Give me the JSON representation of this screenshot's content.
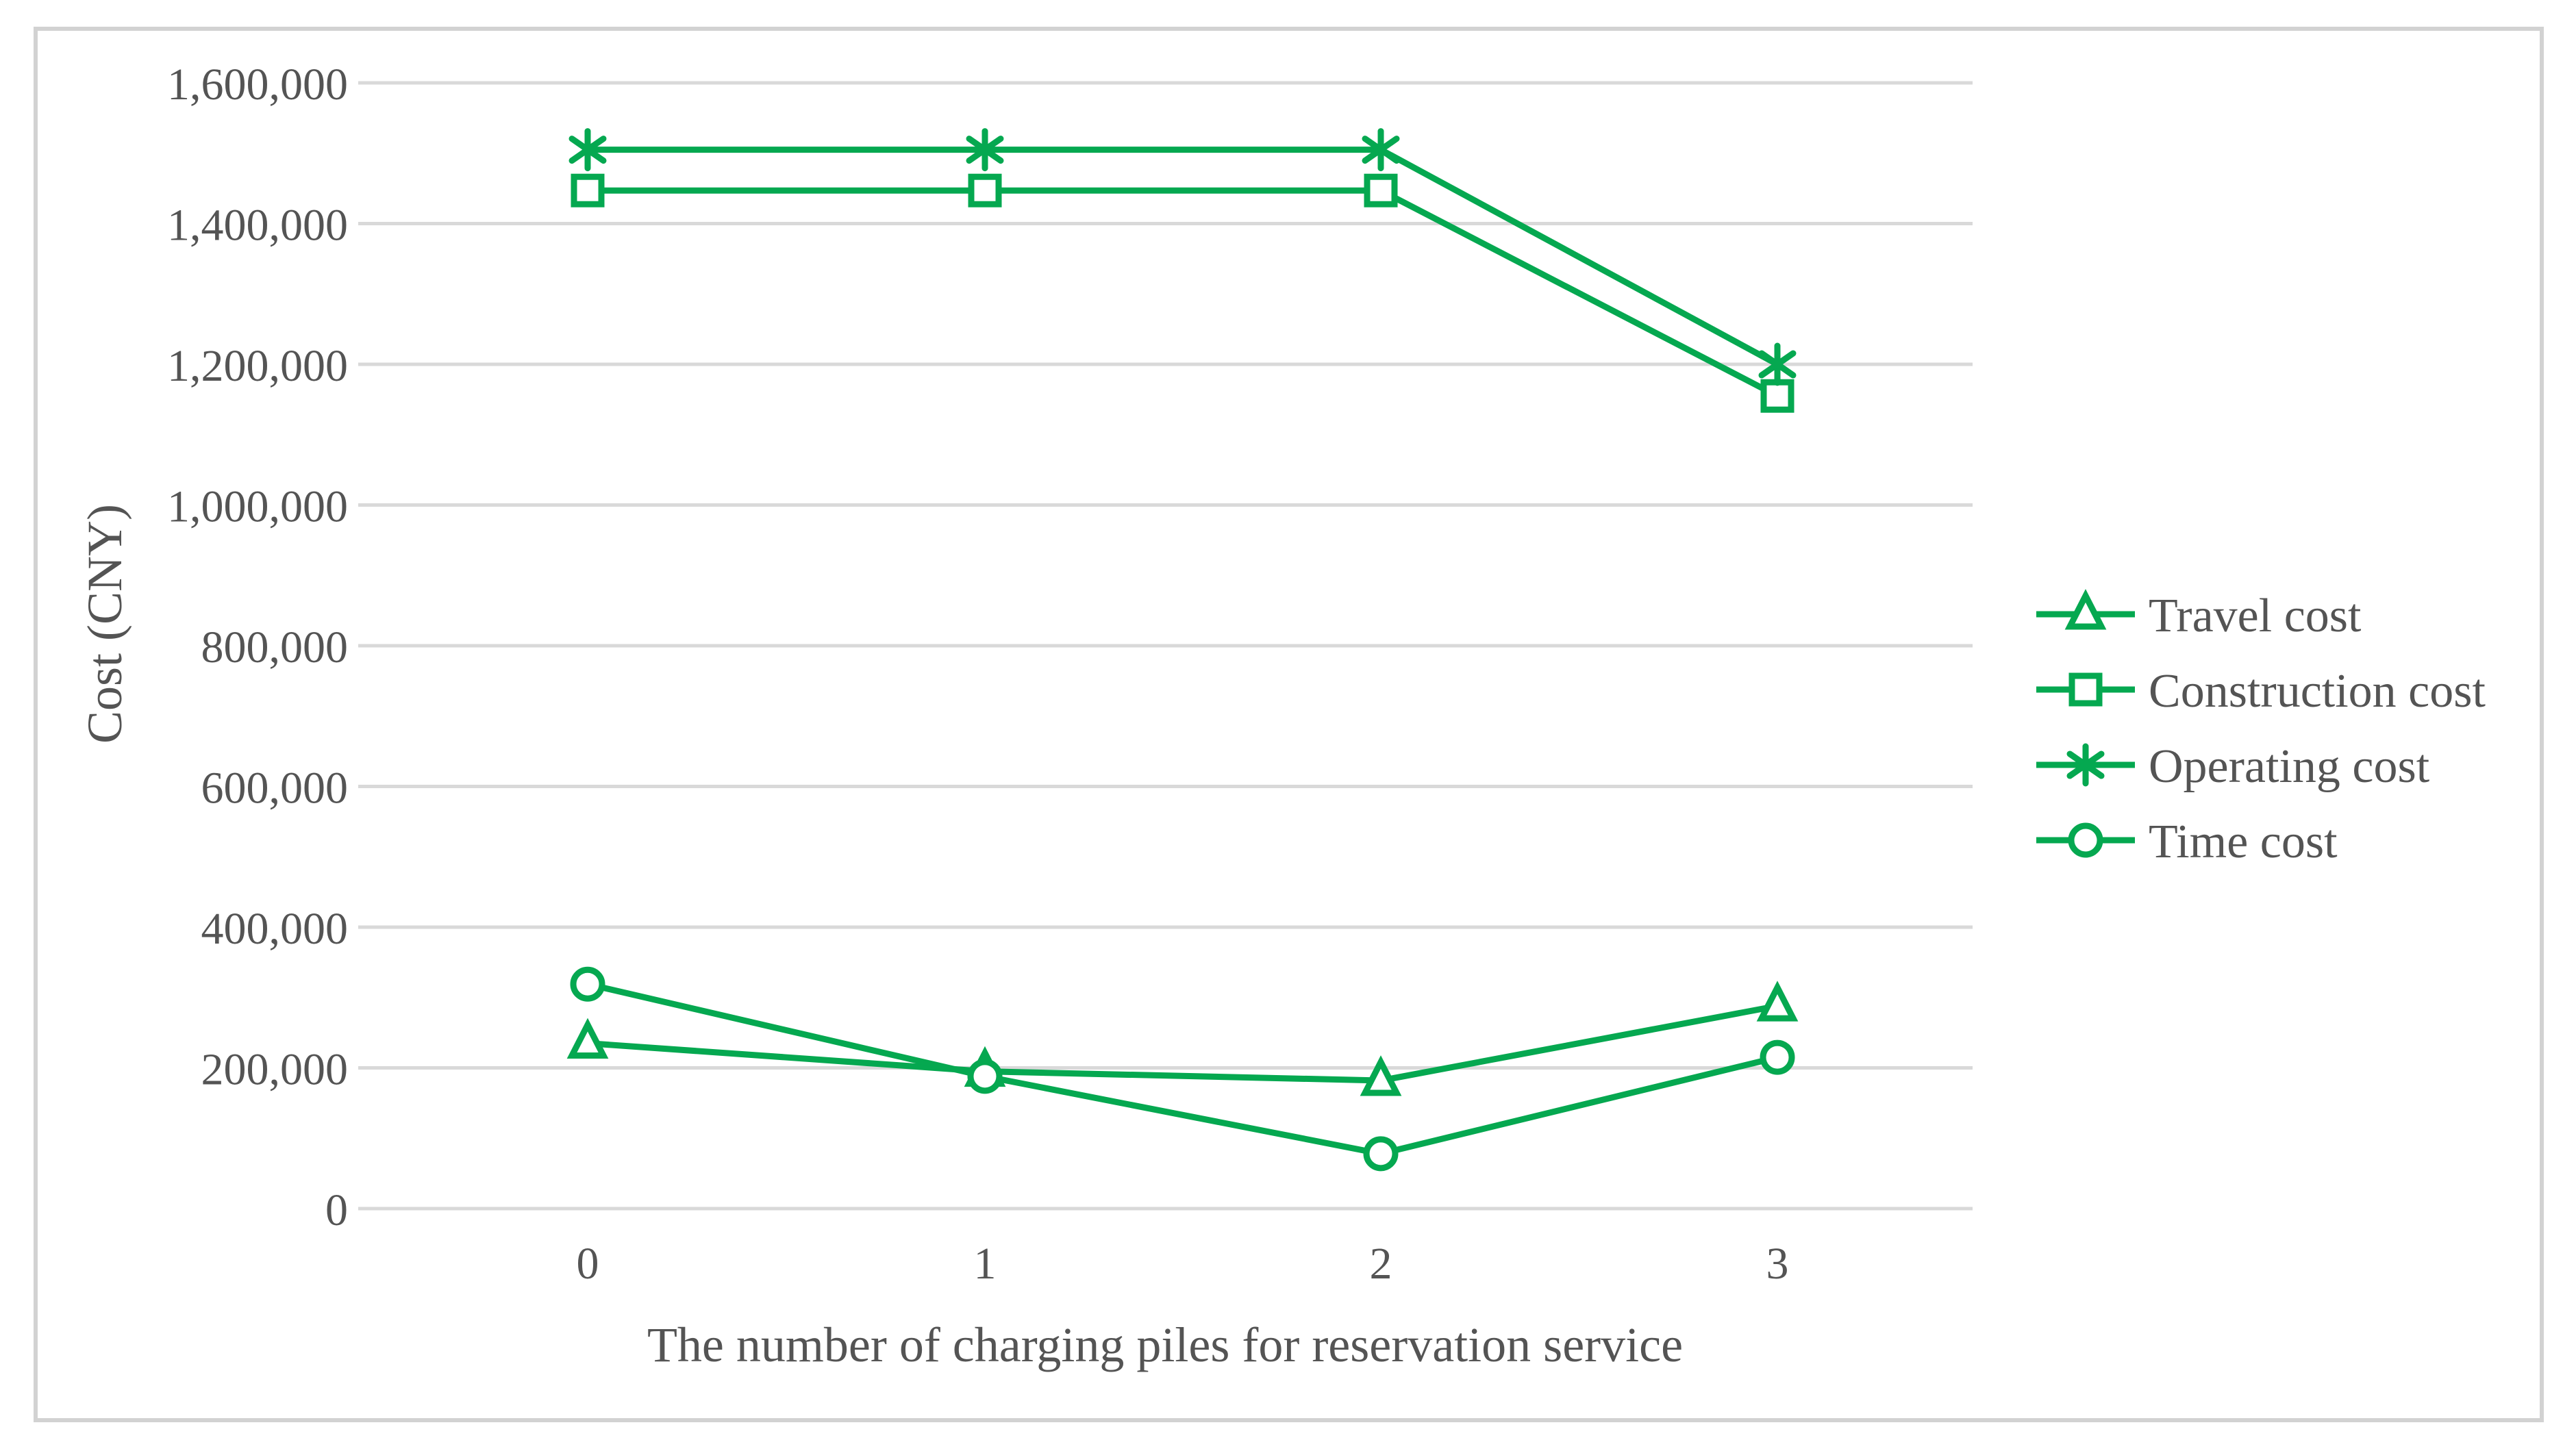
{
  "figure": {
    "description": "Line chart of cost components versus number of charging piles for reservation service"
  },
  "chart_data": {
    "type": "line",
    "title": "",
    "xlabel": "The number of charging piles for reservation service",
    "ylabel": "Cost (CNY)",
    "x": [
      0,
      1,
      2,
      3
    ],
    "xtick_labels": [
      "0",
      "1",
      "2",
      "3"
    ],
    "ylim": [
      0,
      1600000
    ],
    "ytick_step": 200000,
    "ytick_labels": [
      "0",
      "200,000",
      "400,000",
      "600,000",
      "800,000",
      "1,000,000",
      "1,200,000",
      "1,400,000",
      "1,600,000"
    ],
    "grid": "horizontal",
    "legend_position": "right",
    "series": [
      {
        "name": "Travel cost",
        "marker": "triangle",
        "values": [
          235000,
          195000,
          182000,
          288000
        ]
      },
      {
        "name": "Construction cost",
        "marker": "square",
        "values": [
          1447000,
          1447000,
          1447000,
          1155000
        ]
      },
      {
        "name": "Operating cost",
        "marker": "asterisk",
        "values": [
          1505000,
          1505000,
          1505000,
          1200000
        ]
      },
      {
        "name": "Time cost",
        "marker": "circle",
        "values": [
          319000,
          188000,
          78000,
          215000
        ]
      }
    ],
    "colors": {
      "series_green": "#05a850",
      "gridline": "#d9d9d9",
      "text": "#545454",
      "border": "#d2d2d2",
      "background": "#ffffff"
    }
  }
}
